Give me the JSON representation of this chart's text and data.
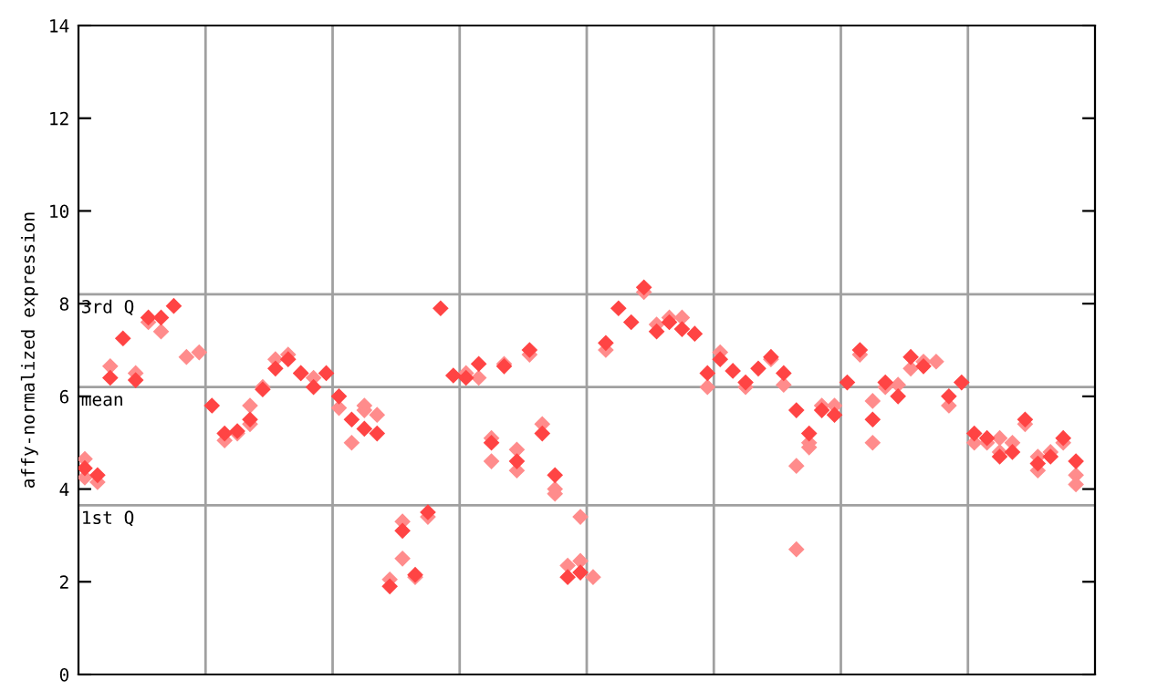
{
  "chart_data": {
    "type": "scatter",
    "ylabel": "affy-normalized expression",
    "categories": [
      null,
      null,
      null,
      null,
      null,
      null,
      null,
      null,
      null,
      null,
      null,
      null,
      null,
      null,
      null,
      null,
      null,
      null,
      null,
      null,
      null,
      null,
      null,
      null,
      null,
      null,
      null,
      null,
      null,
      null,
      null,
      null,
      null,
      null,
      null,
      null,
      null,
      null,
      null,
      null,
      null,
      null,
      null,
      null,
      null,
      null,
      null,
      null,
      null,
      null,
      null,
      null,
      null,
      null,
      null,
      null,
      null,
      null,
      null,
      null,
      null,
      null,
      null,
      null,
      null,
      null,
      null,
      null,
      null,
      null,
      null,
      null,
      null,
      null,
      null,
      null,
      null,
      null,
      null,
      null
    ],
    "ylim": [
      0,
      14
    ],
    "yticks": [
      0,
      2,
      4,
      6,
      8,
      10,
      12,
      14
    ],
    "grid": "x",
    "marker": "diamond",
    "ref_lines": [
      {
        "axis": "y",
        "value": 8.2,
        "label": "3rd Q",
        "color": "#a0a0a0"
      },
      {
        "axis": "y",
        "value": 6.2,
        "label": "mean",
        "color": "#a0a0a0"
      },
      {
        "axis": "y",
        "value": 3.65,
        "label": "1st Q",
        "color": "#a0a0a0"
      }
    ],
    "series": [
      {
        "color": "#ff8c8c",
        "values": [
          4.65,
          4.15,
          6.65,
          null,
          6.5,
          7.6,
          7.4,
          null,
          6.85,
          6.95,
          null,
          5.05,
          5.2,
          5.4,
          6.2,
          6.8,
          6.9,
          6.5,
          6.4,
          null,
          5.75,
          5.0,
          5.7,
          5.6,
          2.05,
          3.3,
          2.1,
          3.4,
          null,
          null,
          6.5,
          6.4,
          5.1,
          6.7,
          4.85,
          6.9,
          5.4,
          4.0,
          2.35,
          3.4,
          2.1,
          7.0,
          null,
          null,
          8.25,
          7.55,
          7.7,
          7.7,
          null,
          6.2,
          6.95,
          null,
          6.2,
          null,
          6.8,
          6.25,
          4.5,
          5.0,
          5.8,
          5.8,
          null,
          6.9,
          5.9,
          6.2,
          6.25,
          6.6,
          6.75,
          6.75,
          5.8,
          null,
          5.0,
          5.0,
          4.8,
          5.0,
          5.4,
          4.4,
          4.8,
          5.0,
          4.3,
          null
        ]
      },
      {
        "color": "#ff8c8c",
        "values": [
          4.25,
          null,
          null,
          null,
          null,
          null,
          null,
          null,
          null,
          null,
          null,
          null,
          null,
          5.8,
          null,
          null,
          null,
          null,
          null,
          null,
          null,
          null,
          5.8,
          null,
          null,
          2.5,
          null,
          null,
          null,
          null,
          null,
          null,
          4.6,
          null,
          4.4,
          null,
          null,
          3.9,
          null,
          2.45,
          null,
          null,
          null,
          null,
          null,
          null,
          null,
          null,
          null,
          null,
          null,
          null,
          null,
          null,
          null,
          null,
          2.7,
          4.9,
          null,
          null,
          null,
          null,
          5.0,
          null,
          null,
          null,
          null,
          null,
          null,
          null,
          null,
          null,
          5.1,
          null,
          null,
          4.7,
          null,
          null,
          4.1,
          null
        ]
      },
      {
        "color": "#ff4444",
        "values": [
          4.45,
          4.3,
          6.4,
          7.25,
          6.35,
          7.7,
          7.7,
          7.95,
          null,
          null,
          5.8,
          5.2,
          5.25,
          5.5,
          6.15,
          6.6,
          6.8,
          6.5,
          6.2,
          6.5,
          6.0,
          5.5,
          5.3,
          5.2,
          1.9,
          3.1,
          2.15,
          3.5,
          7.9,
          6.45,
          6.4,
          6.7,
          5.0,
          6.65,
          4.6,
          7.0,
          5.2,
          4.3,
          2.1,
          2.2,
          null,
          7.15,
          7.9,
          7.6,
          8.35,
          7.4,
          7.6,
          7.45,
          7.35,
          6.5,
          6.8,
          6.55,
          6.3,
          6.6,
          6.85,
          6.5,
          5.7,
          5.2,
          5.7,
          5.6,
          6.3,
          7.0,
          5.5,
          6.3,
          6.0,
          6.85,
          6.65,
          null,
          6.0,
          6.3,
          5.2,
          5.1,
          4.7,
          4.8,
          5.5,
          4.55,
          4.7,
          5.1,
          4.6,
          null
        ]
      }
    ]
  }
}
